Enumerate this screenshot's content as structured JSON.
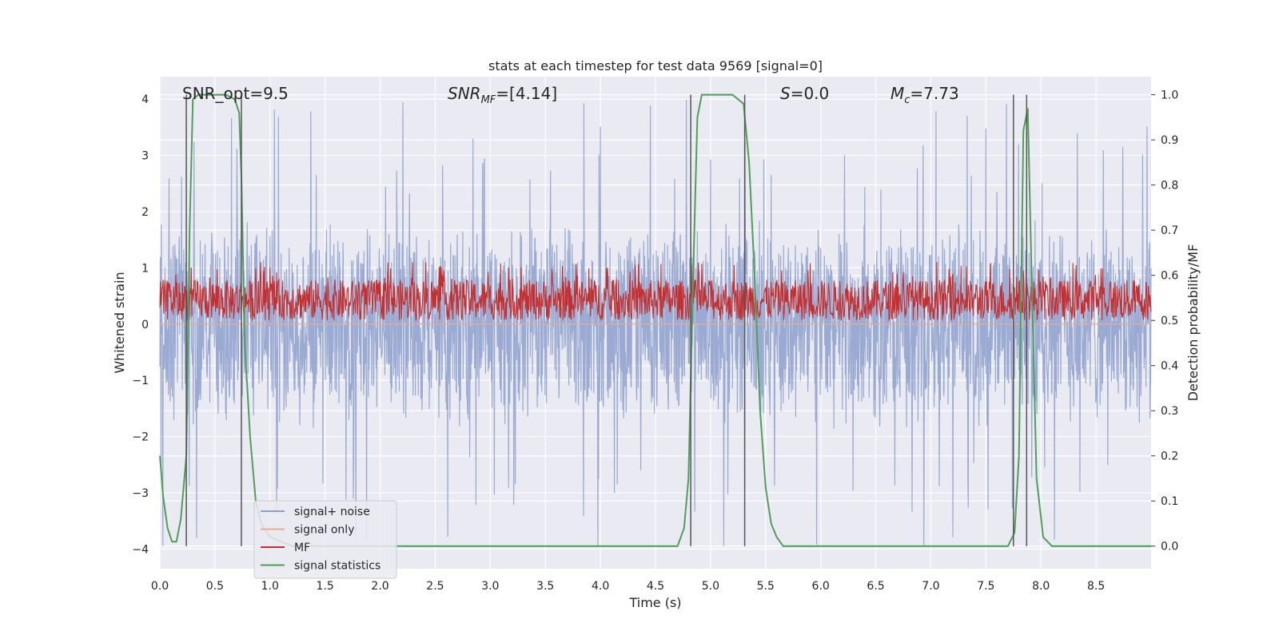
{
  "chart_data": {
    "type": "line",
    "title": "stats at each timestep for test data 9569 [signal=0]",
    "xlabel": "Time (s)",
    "ylabel": "Whitened strain",
    "ylabel_right": "Detection probability/MF",
    "xlim": [
      0.0,
      9.0
    ],
    "ylim": [
      -4.35,
      4.4
    ],
    "ylim_right": [
      -0.05,
      1.04
    ],
    "xticks": [
      "0.0",
      "0.5",
      "1.0",
      "1.5",
      "2.0",
      "2.5",
      "3.0",
      "3.5",
      "4.0",
      "4.5",
      "5.0",
      "5.5",
      "6.0",
      "6.5",
      "7.0",
      "7.5",
      "8.0",
      "8.5"
    ],
    "yticks": [
      "4",
      "3",
      "2",
      "1",
      "0",
      "−1",
      "−2",
      "−3",
      "−4"
    ],
    "yticks_right": [
      "1.0",
      "0.9",
      "0.8",
      "0.7",
      "0.6",
      "0.5",
      "0.4",
      "0.3",
      "0.2",
      "0.1",
      "0.0"
    ],
    "annotations": {
      "snr_opt": "SNR_opt=9.5",
      "snr_mf_main": "SNR",
      "snr_mf_sub": "MF",
      "snr_mf_value": "=[4.14]",
      "s_symbol": "S",
      "s_value": "=0.0",
      "mc_main": "M",
      "mc_sub": "c",
      "mc_value": "=7.73"
    },
    "legend": {
      "placement": "lower-left",
      "entries": [
        {
          "label": "signal+ noise",
          "color": "#8c9fcc"
        },
        {
          "label": "signal only",
          "color": "#f0a98a"
        },
        {
          "label": "MF",
          "color": "#c4302f"
        },
        {
          "label": "signal statistics",
          "color": "#4f9f5a"
        }
      ]
    },
    "series": [
      {
        "name": "signal+ noise",
        "axis": "left",
        "color": "#8c9fcc",
        "description": "whitened noisy strain, approx. symmetric noise with amplitude ~1.5 and spikes up to ±4"
      },
      {
        "name": "signal only",
        "axis": "left",
        "color": "#f0a98a",
        "description": "flat at zero (no signal injected)"
      },
      {
        "name": "MF",
        "axis": "right",
        "color": "#c4302f",
        "description": "matched filter output, fluctuating between ~0.5 and ~0.63"
      },
      {
        "name": "signal statistics",
        "axis": "right",
        "color": "#4f9f5a",
        "x": [
          0.0,
          0.03,
          0.07,
          0.11,
          0.15,
          0.19,
          0.24,
          0.27,
          0.3,
          0.35,
          0.4,
          0.5,
          0.6,
          0.68,
          0.72,
          0.74,
          0.77,
          0.82,
          0.87,
          0.92,
          1.0,
          1.1,
          1.2,
          1.5,
          2.0,
          3.0,
          4.0,
          4.5,
          4.7,
          4.76,
          4.8,
          4.84,
          4.88,
          4.92,
          5.0,
          5.1,
          5.2,
          5.25,
          5.3,
          5.35,
          5.4,
          5.45,
          5.5,
          5.55,
          5.6,
          5.66,
          5.7,
          5.8,
          6.0,
          7.0,
          7.5,
          7.7,
          7.76,
          7.8,
          7.84,
          7.88,
          7.92,
          7.96,
          8.02,
          8.1,
          8.3,
          9.0
        ],
        "values": [
          0.2,
          0.11,
          0.04,
          0.01,
          0.01,
          0.06,
          0.2,
          0.7,
          0.99,
          1.0,
          1.0,
          1.0,
          1.0,
          0.99,
          0.96,
          0.82,
          0.45,
          0.24,
          0.1,
          0.05,
          0.02,
          0.01,
          0.0,
          0.0,
          0.0,
          0.0,
          0.0,
          0.0,
          0.0,
          0.04,
          0.15,
          0.58,
          0.95,
          1.0,
          1.0,
          1.0,
          1.0,
          0.99,
          0.98,
          0.85,
          0.6,
          0.3,
          0.13,
          0.05,
          0.02,
          0.0,
          0.0,
          0.0,
          0.0,
          0.0,
          0.0,
          0.0,
          0.03,
          0.2,
          0.92,
          0.97,
          0.55,
          0.15,
          0.02,
          0.0,
          0.0,
          0.0
        ]
      }
    ],
    "vertical_lines": [
      0.24,
      0.74,
      4.82,
      5.31,
      7.75,
      7.87
    ]
  }
}
